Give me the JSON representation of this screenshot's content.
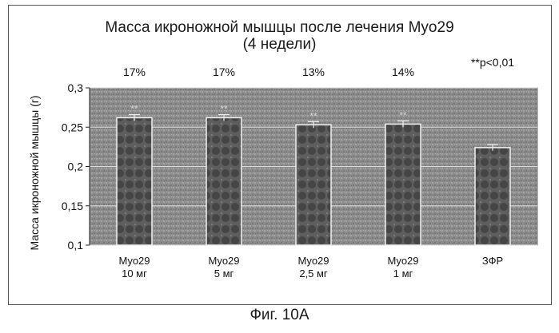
{
  "chart_data": {
    "type": "bar",
    "title_line1": "Масса икроножной мышцы после лечения Myo29",
    "title_line2": "(4 недели)",
    "ylabel": "Масса икроножной мышцы (г)",
    "xlabel": "",
    "ylim": [
      0.1,
      0.3
    ],
    "yticks": [
      "0,1",
      "0,15",
      "0,2",
      "0,25",
      "0,3"
    ],
    "ytick_values": [
      0.1,
      0.15,
      0.2,
      0.25,
      0.3
    ],
    "grid": true,
    "categories": [
      {
        "line1": "Myo29",
        "line2": "10 мг"
      },
      {
        "line1": "Myo29",
        "line2": "5 мг"
      },
      {
        "line1": "Myo29",
        "line2": "2,5 мг"
      },
      {
        "line1": "Myo29",
        "line2": "1 мг"
      },
      {
        "line1": "ЗФР",
        "line2": ""
      }
    ],
    "values": [
      0.262,
      0.262,
      0.253,
      0.254,
      0.224
    ],
    "errors": [
      0.004,
      0.004,
      0.004,
      0.004,
      0.004
    ],
    "percent_labels": [
      "17%",
      "17%",
      "13%",
      "14%",
      ""
    ],
    "significance_marks": [
      "**",
      "**",
      "**",
      "**",
      ""
    ],
    "significance_note": "**p<0,01",
    "colors": {
      "plot_bg": "#8c8c8c",
      "bar_fill": "#5e5e5e",
      "bar_edge": "#f2f2f2",
      "grid": "#dcdcdc"
    }
  },
  "caption": "Фиг. 10А"
}
